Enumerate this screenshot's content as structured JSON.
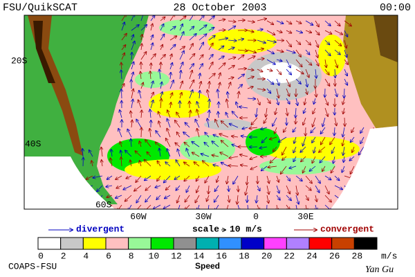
{
  "header": {
    "left": "FSU/QuikSCAT",
    "date": "28 October 2003",
    "time": "00:00"
  },
  "map": {
    "lat_labels": [
      "20S",
      "40S",
      "60S"
    ],
    "lon_labels": [
      "60W",
      "30W",
      "0",
      "30E"
    ]
  },
  "legend": {
    "divergent": "divergent",
    "scale": "scale",
    "scale_value": "10 m/s",
    "convergent": "convergent"
  },
  "colorbar": {
    "ticks": [
      0,
      2,
      4,
      6,
      8,
      10,
      12,
      14,
      16,
      18,
      20,
      22,
      24,
      26,
      28
    ],
    "unit": "m/s",
    "colors": [
      "#ffffff",
      "#c8c8c8",
      "#ffff00",
      "#ffc0c0",
      "#98f898",
      "#00e800",
      "#909090",
      "#00b0b0",
      "#3090ff",
      "#0000c8",
      "#ff40ff",
      "#b080ff",
      "#ff0000",
      "#c84000",
      "#000000"
    ],
    "title": "Speed"
  },
  "footer": {
    "left": "COAPS-FSU",
    "right": "Yan Gu"
  }
}
